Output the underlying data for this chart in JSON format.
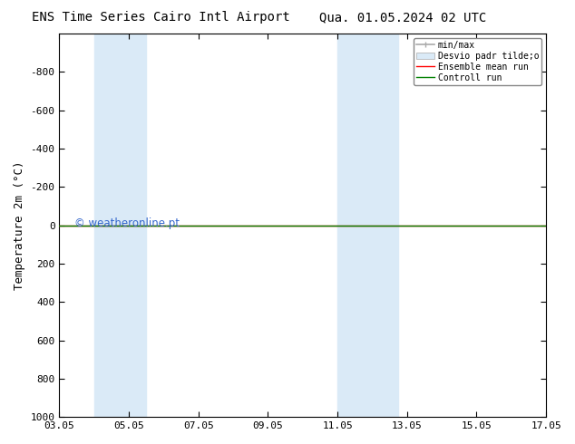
{
  "title_left": "ENS Time Series Cairo Intl Airport",
  "title_right": "Qua. 01.05.2024 02 UTC",
  "ylabel": "Temperature 2m (°C)",
  "ylim_bottom": 1000,
  "ylim_top": -1000,
  "yticks": [
    -800,
    -600,
    -400,
    -200,
    0,
    200,
    400,
    600,
    800,
    1000
  ],
  "xtick_labels": [
    "03.05",
    "05.05",
    "07.05",
    "09.05",
    "11.05",
    "13.05",
    "15.05",
    "17.05"
  ],
  "xtick_positions": [
    3,
    5,
    7,
    9,
    11,
    13,
    15,
    17
  ],
  "x_min": 3,
  "x_max": 17,
  "shaded_bands": [
    {
      "x_start": 4.0,
      "x_end": 5.5
    },
    {
      "x_start": 11.0,
      "x_end": 12.75
    }
  ],
  "control_run_y": 0,
  "ensemble_mean_y": 0,
  "watermark": "© weatheronline.pt",
  "watermark_color": "#3366cc",
  "legend_entries": [
    {
      "label": "min/max",
      "color": "#aaaaaa",
      "lw": 1.2
    },
    {
      "label": "Desvio padr tilde;o",
      "color": "#cce0f0",
      "lw": 8
    },
    {
      "label": "Ensemble mean run",
      "color": "red",
      "lw": 1.0
    },
    {
      "label": "Controll run",
      "color": "green",
      "lw": 1.0
    }
  ],
  "background_color": "white",
  "plot_bg_color": "white",
  "shaded_color": "#daeaf7",
  "spine_color": "black",
  "tick_fontsize": 8,
  "ylabel_fontsize": 9,
  "title_fontsize": 10
}
